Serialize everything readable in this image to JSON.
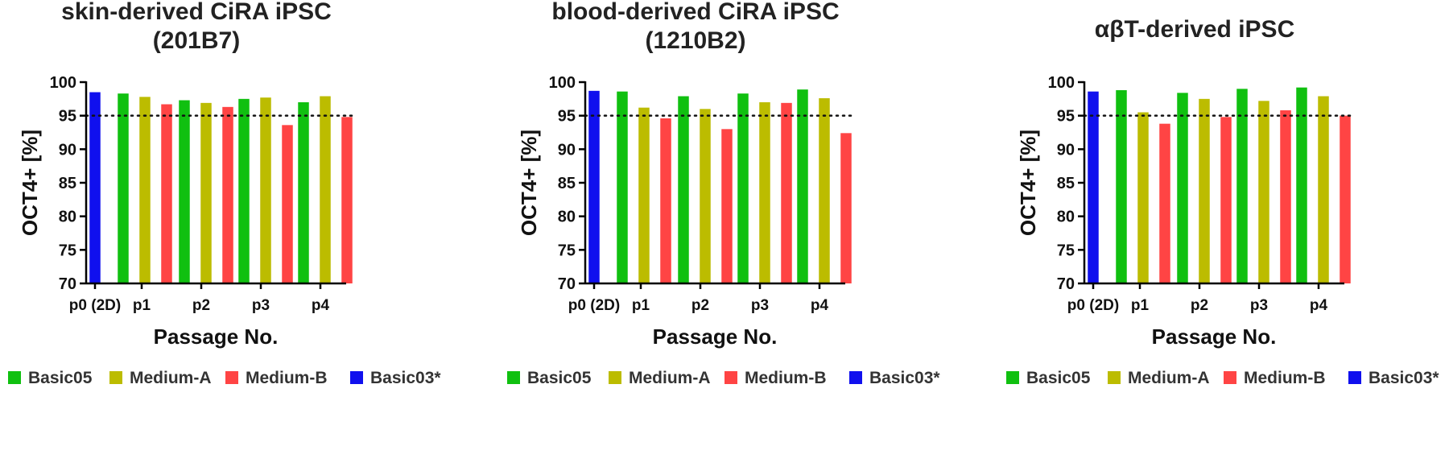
{
  "chart_data": [
    {
      "type": "bar",
      "title": [
        "skin-derived CiRA iPSC",
        "(201B7)"
      ],
      "xlabel": "Passage No.",
      "ylabel": "OCT4+ [%]",
      "ylim": [
        70,
        100
      ],
      "yticks": [
        70,
        75,
        80,
        85,
        90,
        95,
        100
      ],
      "reference_line": 95,
      "categories": [
        "p0 (2D)",
        "p1",
        "p2",
        "p3",
        "p4"
      ],
      "series": [
        {
          "name": "Basic03*",
          "color": "#1010ee",
          "values": [
            98.5,
            null,
            null,
            null,
            null
          ]
        },
        {
          "name": "Basic05",
          "color": "#10c010",
          "values": [
            null,
            98.3,
            97.3,
            97.5,
            97.0
          ]
        },
        {
          "name": "Medium-A",
          "color": "#bcbc00",
          "values": [
            null,
            97.8,
            96.9,
            97.7,
            97.9
          ]
        },
        {
          "name": "Medium-B",
          "color": "#ff4444",
          "values": [
            null,
            96.7,
            96.3,
            93.6,
            94.8
          ]
        }
      ],
      "legend": [
        {
          "label": "Basic05",
          "color": "#10c010"
        },
        {
          "label": "Medium-A",
          "color": "#bcbc00"
        },
        {
          "label": "Medium-B",
          "color": "#ff4444"
        },
        {
          "label": "Basic03*",
          "color": "#1010ee"
        }
      ],
      "legend_position": "bottom"
    },
    {
      "type": "bar",
      "title": [
        "blood-derived CiRA iPSC",
        "(1210B2)"
      ],
      "xlabel": "Passage No.",
      "ylabel": "OCT4+ [%]",
      "ylim": [
        70,
        100
      ],
      "yticks": [
        70,
        75,
        80,
        85,
        90,
        95,
        100
      ],
      "reference_line": 95,
      "categories": [
        "p0 (2D)",
        "p1",
        "p2",
        "p3",
        "p4"
      ],
      "series": [
        {
          "name": "Basic03*",
          "color": "#1010ee",
          "values": [
            98.7,
            null,
            null,
            null,
            null
          ]
        },
        {
          "name": "Basic05",
          "color": "#10c010",
          "values": [
            null,
            98.6,
            97.9,
            98.3,
            98.9
          ]
        },
        {
          "name": "Medium-A",
          "color": "#bcbc00",
          "values": [
            null,
            96.2,
            96.0,
            97.0,
            97.6
          ]
        },
        {
          "name": "Medium-B",
          "color": "#ff4444",
          "values": [
            null,
            94.6,
            93.0,
            96.9,
            92.4
          ]
        }
      ],
      "legend": [
        {
          "label": "Basic05",
          "color": "#10c010"
        },
        {
          "label": "Medium-A",
          "color": "#bcbc00"
        },
        {
          "label": "Medium-B",
          "color": "#ff4444"
        },
        {
          "label": "Basic03*",
          "color": "#1010ee"
        }
      ],
      "legend_position": "bottom"
    },
    {
      "type": "bar",
      "title": [
        "αβT-derived iPSC"
      ],
      "xlabel": "Passage No.",
      "ylabel": "OCT4+ [%]",
      "ylim": [
        70,
        100
      ],
      "yticks": [
        70,
        75,
        80,
        85,
        90,
        95,
        100
      ],
      "reference_line": 95,
      "categories": [
        "p0 (2D)",
        "p1",
        "p2",
        "p3",
        "p4"
      ],
      "series": [
        {
          "name": "Basic03*",
          "color": "#1010ee",
          "values": [
            98.6,
            null,
            null,
            null,
            null
          ]
        },
        {
          "name": "Basic05",
          "color": "#10c010",
          "values": [
            null,
            98.8,
            98.4,
            99.0,
            99.2
          ]
        },
        {
          "name": "Medium-A",
          "color": "#bcbc00",
          "values": [
            null,
            95.5,
            97.5,
            97.2,
            97.9
          ]
        },
        {
          "name": "Medium-B",
          "color": "#ff4444",
          "values": [
            null,
            93.8,
            94.8,
            95.8,
            95.0
          ]
        }
      ],
      "legend": [
        {
          "label": "Basic05",
          "color": "#10c010"
        },
        {
          "label": "Medium-A",
          "color": "#bcbc00"
        },
        {
          "label": "Medium-B",
          "color": "#ff4444"
        },
        {
          "label": "Basic03*",
          "color": "#1010ee"
        }
      ],
      "legend_position": "bottom"
    }
  ]
}
